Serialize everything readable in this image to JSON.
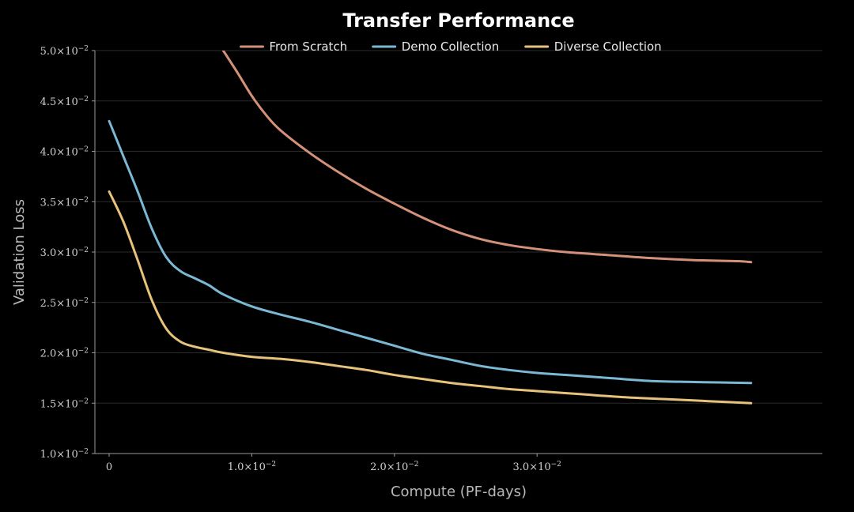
{
  "chart_data": {
    "type": "line",
    "title": "Transfer Performance",
    "xlabel": "Compute (PF-days)",
    "ylabel": "Validation Loss",
    "xlim": [
      -0.001,
      0.05
    ],
    "ylim": [
      0.01,
      0.05
    ],
    "x_ticks": [
      {
        "value": 0,
        "base": "0",
        "exp": ""
      },
      {
        "value": 0.01,
        "base": "1.0×10",
        "exp": "−2"
      },
      {
        "value": 0.02,
        "base": "2.0×10",
        "exp": "−2"
      },
      {
        "value": 0.03,
        "base": "3.0×10",
        "exp": "−2"
      }
    ],
    "y_ticks": [
      {
        "value": 0.01,
        "base": "1.0×10",
        "exp": "−2"
      },
      {
        "value": 0.015,
        "base": "1.5×10",
        "exp": "−2"
      },
      {
        "value": 0.02,
        "base": "2.0×10",
        "exp": "−2"
      },
      {
        "value": 0.025,
        "base": "2.5×10",
        "exp": "−2"
      },
      {
        "value": 0.03,
        "base": "3.0×10",
        "exp": "−2"
      },
      {
        "value": 0.035,
        "base": "3.5×10",
        "exp": "−2"
      },
      {
        "value": 0.04,
        "base": "4.0×10",
        "exp": "−2"
      },
      {
        "value": 0.045,
        "base": "4.5×10",
        "exp": "−2"
      },
      {
        "value": 0.05,
        "base": "5.0×10",
        "exp": "−2"
      }
    ],
    "grid": true,
    "legend_position": "top-center",
    "series": [
      {
        "name": "From Scratch",
        "color": "#d4917a",
        "points": [
          [
            0.008,
            0.05
          ],
          [
            0.009,
            0.0478
          ],
          [
            0.01,
            0.0455
          ],
          [
            0.011,
            0.0436
          ],
          [
            0.012,
            0.0421
          ],
          [
            0.014,
            0.0399
          ],
          [
            0.016,
            0.038
          ],
          [
            0.018,
            0.0363
          ],
          [
            0.02,
            0.0348
          ],
          [
            0.022,
            0.0334
          ],
          [
            0.024,
            0.0322
          ],
          [
            0.026,
            0.0313
          ],
          [
            0.028,
            0.0307
          ],
          [
            0.03,
            0.0303
          ],
          [
            0.032,
            0.03
          ],
          [
            0.035,
            0.0297
          ],
          [
            0.038,
            0.0294
          ],
          [
            0.041,
            0.0292
          ],
          [
            0.044,
            0.0291
          ],
          [
            0.045,
            0.029
          ]
        ]
      },
      {
        "name": "Demo Collection",
        "color": "#7ab8d4",
        "points": [
          [
            0.0,
            0.043
          ],
          [
            0.001,
            0.0395
          ],
          [
            0.002,
            0.036
          ],
          [
            0.003,
            0.0323
          ],
          [
            0.004,
            0.0295
          ],
          [
            0.005,
            0.0281
          ],
          [
            0.006,
            0.0274
          ],
          [
            0.007,
            0.0267
          ],
          [
            0.008,
            0.0258
          ],
          [
            0.01,
            0.0246
          ],
          [
            0.012,
            0.0238
          ],
          [
            0.014,
            0.0231
          ],
          [
            0.016,
            0.0223
          ],
          [
            0.018,
            0.0215
          ],
          [
            0.02,
            0.0207
          ],
          [
            0.022,
            0.0199
          ],
          [
            0.024,
            0.0193
          ],
          [
            0.026,
            0.0187
          ],
          [
            0.028,
            0.0183
          ],
          [
            0.03,
            0.018
          ],
          [
            0.032,
            0.0178
          ],
          [
            0.035,
            0.0175
          ],
          [
            0.038,
            0.0172
          ],
          [
            0.041,
            0.0171
          ],
          [
            0.045,
            0.017
          ]
        ]
      },
      {
        "name": "Diverse Collection",
        "color": "#e6c27a",
        "points": [
          [
            0.0,
            0.036
          ],
          [
            0.001,
            0.033
          ],
          [
            0.002,
            0.0292
          ],
          [
            0.003,
            0.0252
          ],
          [
            0.004,
            0.0224
          ],
          [
            0.005,
            0.0211
          ],
          [
            0.006,
            0.0206
          ],
          [
            0.007,
            0.0203
          ],
          [
            0.008,
            0.02
          ],
          [
            0.01,
            0.0196
          ],
          [
            0.012,
            0.0194
          ],
          [
            0.014,
            0.0191
          ],
          [
            0.016,
            0.0187
          ],
          [
            0.018,
            0.0183
          ],
          [
            0.02,
            0.0178
          ],
          [
            0.022,
            0.0174
          ],
          [
            0.024,
            0.017
          ],
          [
            0.026,
            0.0167
          ],
          [
            0.028,
            0.0164
          ],
          [
            0.03,
            0.0162
          ],
          [
            0.033,
            0.0159
          ],
          [
            0.036,
            0.0156
          ],
          [
            0.039,
            0.0154
          ],
          [
            0.042,
            0.0152
          ],
          [
            0.045,
            0.015
          ]
        ]
      }
    ]
  }
}
